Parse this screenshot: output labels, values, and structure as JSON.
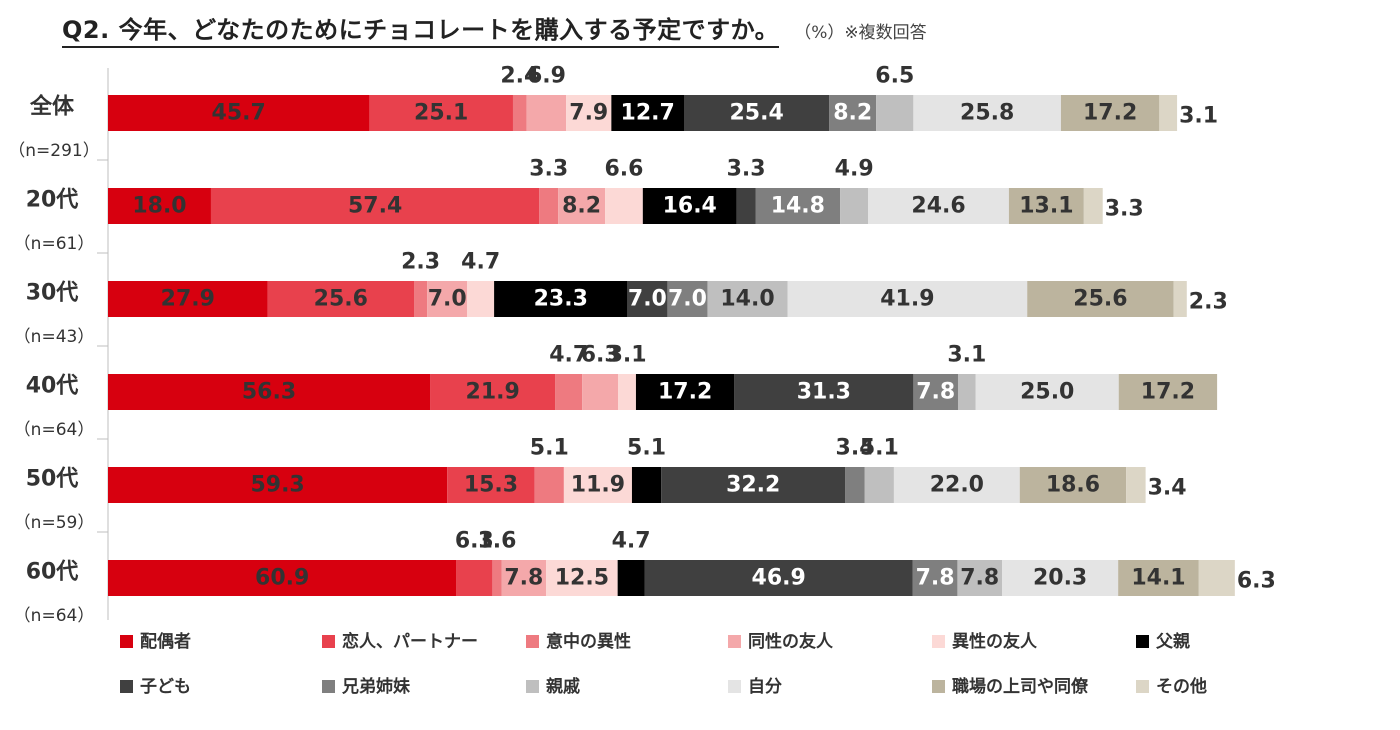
{
  "chart_data": {
    "type": "bar",
    "orientation": "horizontal-stacked",
    "title": "Q2. 今年、どなたのためにチョコレートを購入する予定ですか。",
    "unit_note": "（%）※複数回答",
    "xlim": [
      0,
      220
    ],
    "legend_position": "bottom",
    "series": [
      {
        "name": "配偶者",
        "color": "#d7000f"
      },
      {
        "name": "恋人、パートナー",
        "color": "#e8414d"
      },
      {
        "name": "意中の異性",
        "color": "#ee7a80"
      },
      {
        "name": "同性の友人",
        "color": "#f4a8aa"
      },
      {
        "name": "異性の友人",
        "color": "#fcd9d6"
      },
      {
        "name": "父親",
        "color": "#000000"
      },
      {
        "name": "子ども",
        "color": "#404040"
      },
      {
        "name": "兄弟姉妹",
        "color": "#7f7f7f"
      },
      {
        "name": "親戚",
        "color": "#bfbfbf"
      },
      {
        "name": "自分",
        "color": "#e4e4e4"
      },
      {
        "name": "職場の上司や同僚",
        "color": "#bcb49e"
      },
      {
        "name": "その他",
        "color": "#dcd6c6"
      }
    ],
    "rows": [
      {
        "label": "全体",
        "n": "（n=291）",
        "values": [
          45.7,
          25.1,
          2.4,
          6.9,
          7.9,
          12.7,
          25.4,
          8.2,
          6.5,
          25.8,
          17.2,
          3.1
        ]
      },
      {
        "label": "20代",
        "n": "（n=61）",
        "values": [
          18.0,
          57.4,
          3.3,
          8.2,
          6.6,
          16.4,
          3.3,
          14.8,
          4.9,
          24.6,
          13.1,
          3.3
        ]
      },
      {
        "label": "30代",
        "n": "（n=43）",
        "values": [
          27.9,
          25.6,
          2.3,
          7.0,
          4.7,
          23.3,
          7.0,
          7.0,
          14.0,
          41.9,
          25.6,
          2.3
        ]
      },
      {
        "label": "40代",
        "n": "（n=64）",
        "values": [
          56.3,
          21.9,
          4.7,
          6.3,
          3.1,
          17.2,
          31.3,
          7.8,
          3.1,
          25.0,
          17.2,
          0
        ]
      },
      {
        "label": "50代",
        "n": "（n=59）",
        "values": [
          59.3,
          15.3,
          5.1,
          0,
          11.9,
          5.1,
          32.2,
          3.4,
          5.1,
          22.0,
          18.6,
          3.4
        ]
      },
      {
        "label": "60代",
        "n": "（n=64）",
        "values": [
          60.9,
          6.3,
          1.6,
          7.8,
          12.5,
          4.7,
          46.9,
          7.8,
          7.8,
          20.3,
          14.1,
          6.3
        ]
      }
    ]
  }
}
